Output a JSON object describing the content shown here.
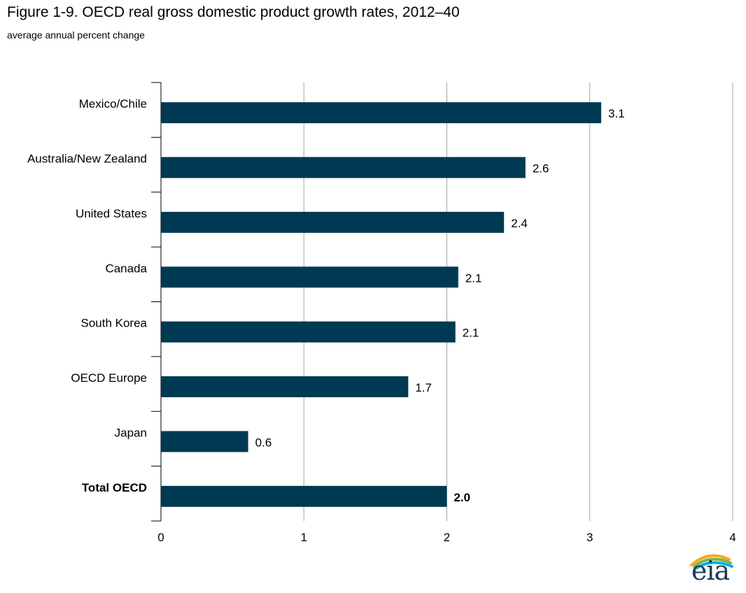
{
  "title": "Figure 1-9. OECD real gross domestic product growth rates, 2012–40",
  "subtitle": "average annual percent change",
  "chart_data": {
    "type": "bar",
    "orientation": "horizontal",
    "categories": [
      "Mexico/Chile",
      "Australia/New Zealand",
      "United States",
      "Canada",
      "South Korea",
      "OECD Europe",
      "Japan",
      "Total OECD"
    ],
    "values": [
      3.08,
      2.55,
      2.4,
      2.08,
      2.06,
      1.73,
      0.61,
      2.0
    ],
    "value_labels": [
      "3.1",
      "2.6",
      "2.4",
      "2.1",
      "2.1",
      "1.7",
      "0.6",
      "2.0"
    ],
    "bold_categories": [
      "Total OECD"
    ],
    "xlim": [
      0,
      4
    ],
    "xticks": [
      "0",
      "1",
      "2",
      "3",
      "4"
    ],
    "grid": true,
    "bar_color": "#003a52",
    "grid_color": "#a6a6a6"
  },
  "logo": {
    "text": "eia",
    "colors": [
      "#f7a823",
      "#7ab648",
      "#00aeef"
    ]
  }
}
